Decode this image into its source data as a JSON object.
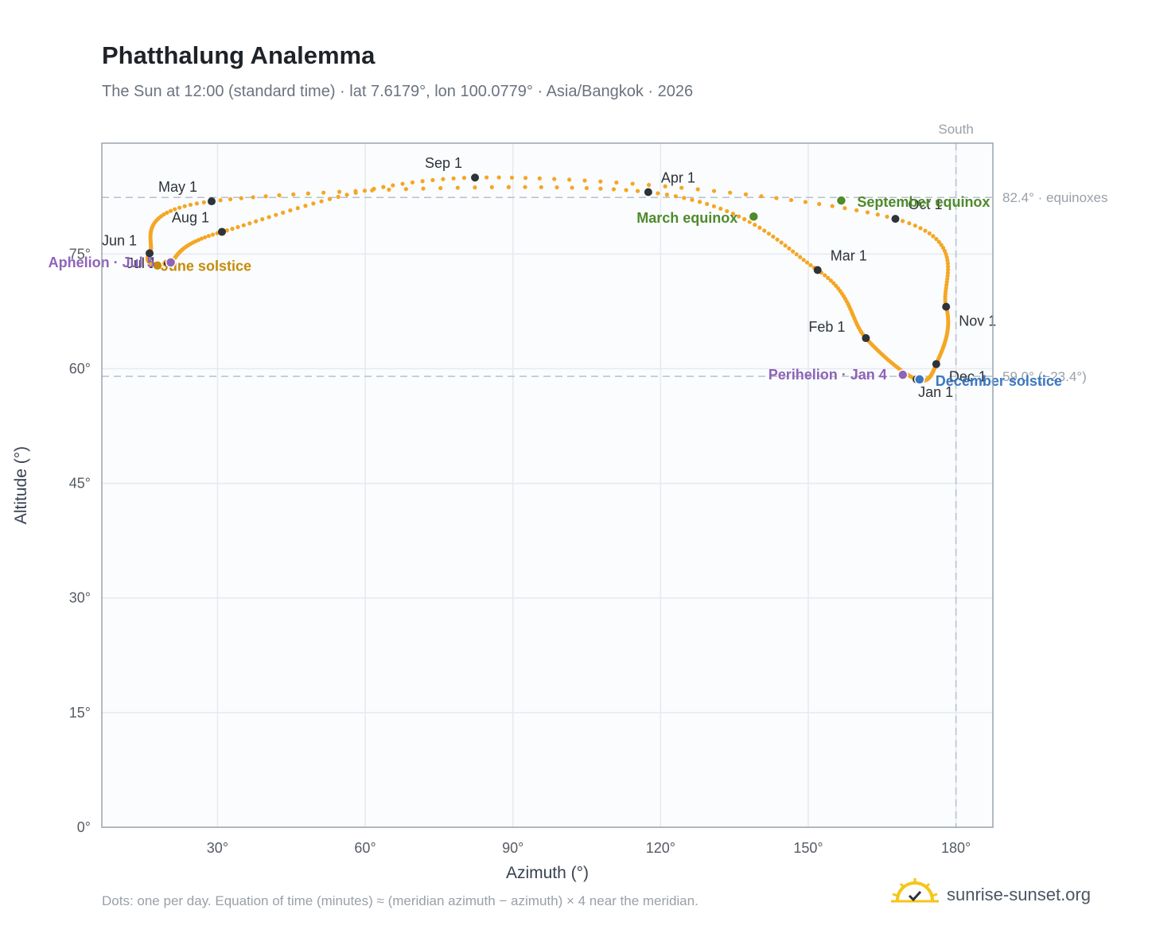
{
  "chart_data": {
    "type": "scatter",
    "title": "Phatthalung Analemma",
    "subtitle": "The Sun at 12:00 (standard time) · lat 7.6179°, lon 100.0779° · Asia/Bangkok · 2026",
    "xlabel": "Azimuth (°)",
    "ylabel": "Altitude (°)",
    "xlim": [
      6.5,
      187.5
    ],
    "ylim": [
      0,
      89.5
    ],
    "xticks": [
      30,
      60,
      90,
      120,
      150,
      180
    ],
    "yticks": [
      0,
      15,
      30,
      45,
      60,
      75
    ],
    "tick_suffix": "°",
    "grid": true,
    "south_label": "South",
    "south_azimuth": 180,
    "reference_lines": [
      {
        "altitude": 82.4,
        "label": "82.4° · equinoxes"
      },
      {
        "altitude": 59.0,
        "label": "59.0° (−23.4°)"
      }
    ],
    "months": [
      {
        "label": "Jan 1",
        "az": 172.0,
        "alt": 58.6
      },
      {
        "label": "Feb 1",
        "az": 161.7,
        "alt": 64.0
      },
      {
        "label": "Mar 1",
        "az": 151.9,
        "alt": 72.9
      },
      {
        "label": "Apr 1",
        "az": 117.5,
        "alt": 83.1
      },
      {
        "label": "May 1",
        "az": 28.8,
        "alt": 81.9
      },
      {
        "label": "Jun 1",
        "az": 16.2,
        "alt": 75.1
      },
      {
        "label": "Jul 1",
        "az": 19.9,
        "alt": 73.8
      },
      {
        "label": "Aug 1",
        "az": 30.9,
        "alt": 77.9
      },
      {
        "label": "Sep 1",
        "az": 82.3,
        "alt": 85.0
      },
      {
        "label": "Oct 1",
        "az": 167.7,
        "alt": 79.6
      },
      {
        "label": "Nov 1",
        "az": 178.0,
        "alt": 68.1
      },
      {
        "label": "Dec 1",
        "az": 176.0,
        "alt": 60.6
      }
    ],
    "events": [
      {
        "label": "March equinox",
        "az": 138.9,
        "alt": 79.9,
        "color": "#4f8a2b"
      },
      {
        "label": "June solstice",
        "az": 17.8,
        "alt": 73.5,
        "color": "#c58c0a"
      },
      {
        "label": "September equinox",
        "az": 156.7,
        "alt": 82.0,
        "color": "#4f8a2b"
      },
      {
        "label": "December solstice",
        "az": 172.6,
        "alt": 58.6,
        "color": "#3b78c2"
      },
      {
        "label": "Perihelion · Jan 4",
        "az": 169.2,
        "alt": 59.2,
        "color": "#8e63b8"
      },
      {
        "label": "Aphelion · Jul 5",
        "az": 20.5,
        "alt": 73.9,
        "color": "#8e63b8"
      }
    ],
    "colors": {
      "dots": "#f5a623",
      "month": "#2d3339",
      "grid": "#e6e9ee",
      "plot_bg": "#fafcfe",
      "frame": "#9aa3ae"
    }
  },
  "footnote": "Dots: one per day. Equation of time (minutes) ≈ (meridian azimuth − azimuth) × 4 near the meridian.",
  "brand": {
    "name": "sunrise-sunset.org",
    "icon": "sun-check-icon"
  }
}
